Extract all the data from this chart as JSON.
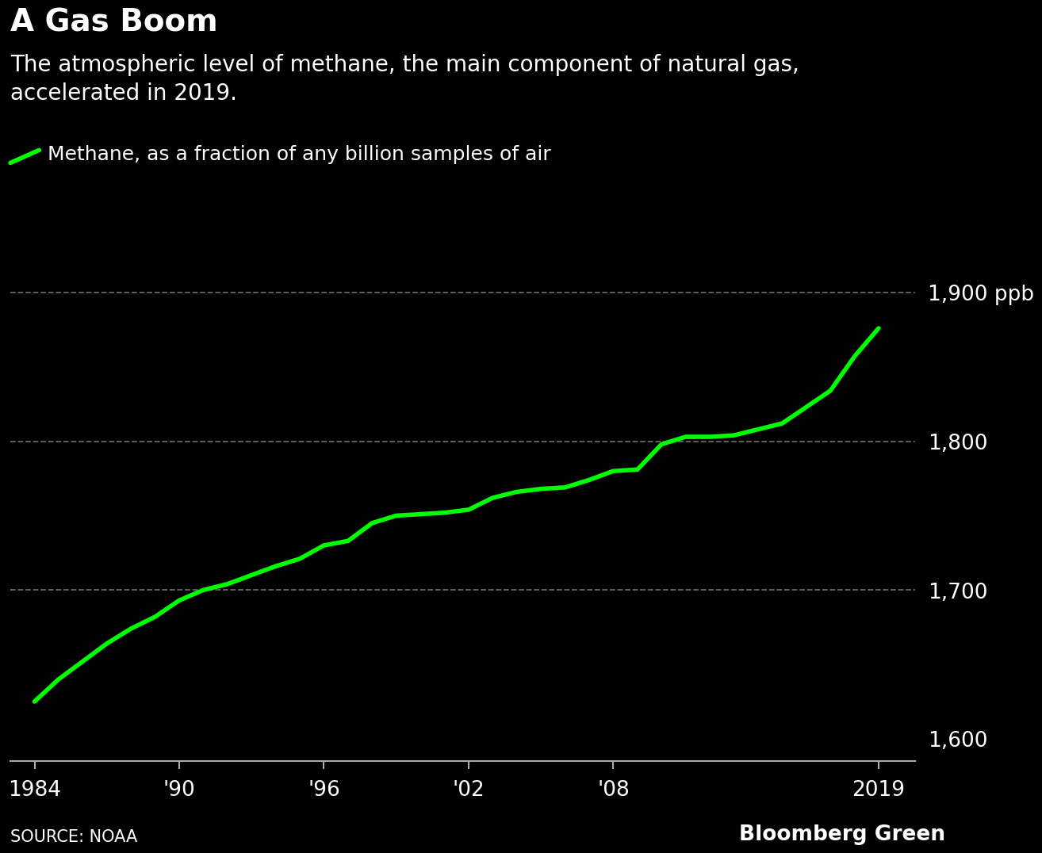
{
  "title": "A Gas Boom",
  "subtitle": "The atmospheric level of methane, the main component of natural gas,\naccelerated in 2019.",
  "legend_label": "Methane, as a fraction of any billion samples of air",
  "source": "SOURCE: NOAA",
  "branding": "Bloomberg Green",
  "background_color": "#000000",
  "text_color": "#ffffff",
  "line_color": "#00ff00",
  "grid_color": "#666666",
  "axis_color": "#aaaaaa",
  "yticks": [
    1600,
    1700,
    1800,
    1900
  ],
  "ytick_labels": [
    "1,600",
    "1,700",
    "1,800",
    "1,900 ppb"
  ],
  "xtick_positions": [
    1984,
    1990,
    1996,
    2002,
    2008,
    2019
  ],
  "xtick_labels": [
    "1984",
    "'90",
    "'96",
    "'02",
    "'08",
    "2019"
  ],
  "xlim": [
    1983.0,
    2020.5
  ],
  "ylim": [
    1585,
    1935
  ],
  "years": [
    1984,
    1985,
    1986,
    1987,
    1988,
    1989,
    1990,
    1991,
    1992,
    1993,
    1994,
    1995,
    1996,
    1997,
    1998,
    1999,
    2000,
    2001,
    2002,
    2003,
    2004,
    2005,
    2006,
    2007,
    2008,
    2009,
    2010,
    2011,
    2012,
    2013,
    2014,
    2015,
    2016,
    2017,
    2018,
    2019
  ],
  "values": [
    1625,
    1640,
    1652,
    1664,
    1674,
    1682,
    1693,
    1700,
    1704,
    1710,
    1716,
    1721,
    1730,
    1733,
    1745,
    1750,
    1751,
    1752,
    1754,
    1762,
    1766,
    1768,
    1769,
    1774,
    1780,
    1781,
    1798,
    1803,
    1803,
    1804,
    1808,
    1812,
    1823,
    1834,
    1857,
    1876
  ],
  "grid_yticks": [
    1700,
    1800,
    1900
  ],
  "title_fontsize": 28,
  "subtitle_fontsize": 20,
  "legend_fontsize": 18,
  "tick_fontsize": 19,
  "source_fontsize": 15,
  "branding_fontsize": 19
}
